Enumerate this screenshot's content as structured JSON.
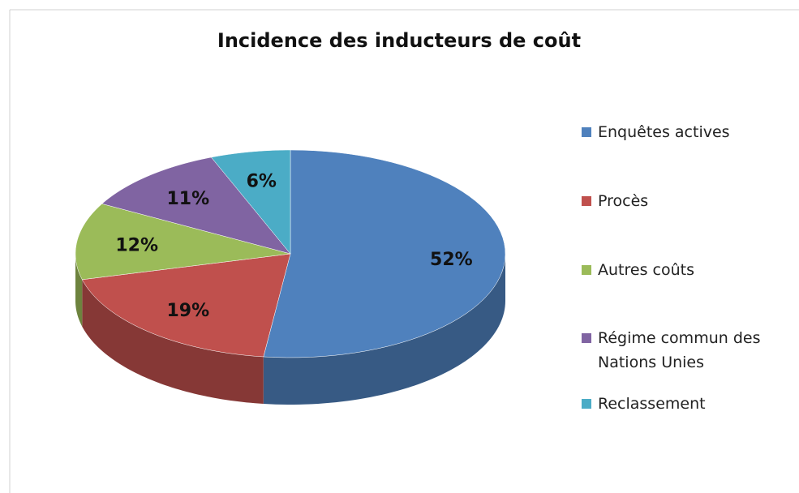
{
  "chart_data": {
    "type": "pie",
    "title": "Incidence des inducteurs de coût",
    "categories": [
      "Enquêtes actives",
      "Procès",
      "Autres coûts",
      "Régime commun des Nations Unies",
      "Reclassement"
    ],
    "values": [
      52,
      19,
      12,
      11,
      6
    ],
    "value_labels": [
      "52%",
      "19%",
      "12%",
      "11%",
      "6%"
    ],
    "colors": [
      "#4f81bd",
      "#c0504d",
      "#9bbb59",
      "#8064a2",
      "#4bacc6"
    ]
  }
}
